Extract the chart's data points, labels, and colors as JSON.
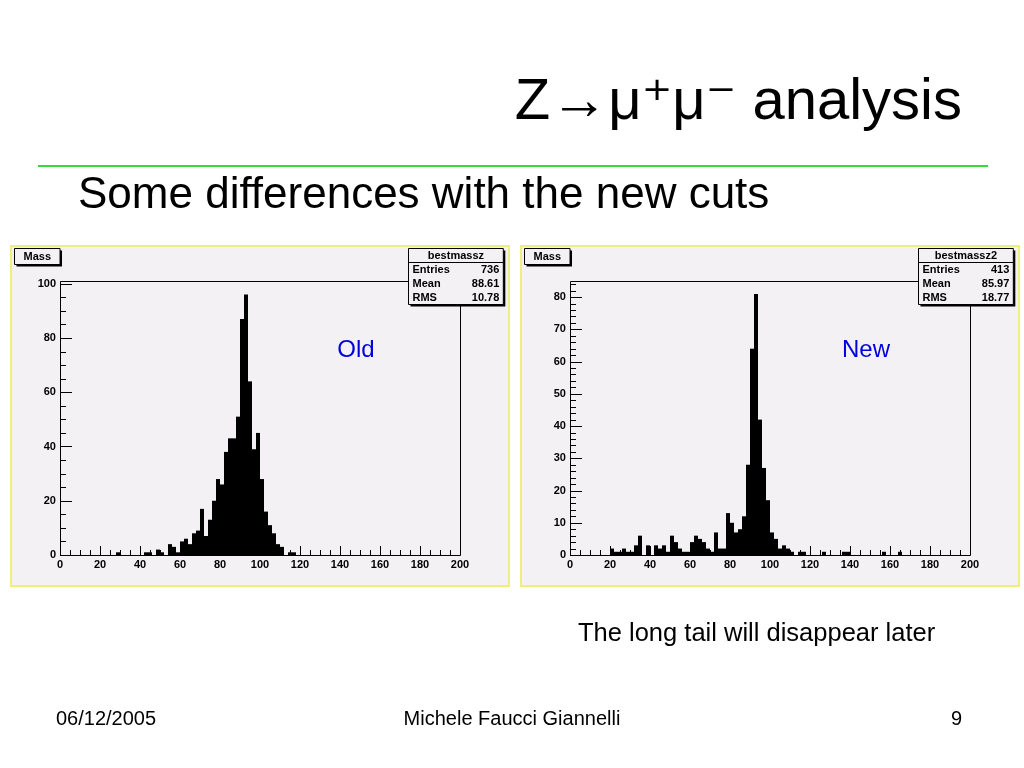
{
  "chart_data": [
    {
      "type": "other",
      "title": "Z→μ⁺μ⁻ analysis",
      "subtitle": "Some differences with the new cuts"
    },
    {
      "type": "histogram",
      "title": "Mass",
      "color": "#000000",
      "bins": [
        0,
        2,
        4,
        6,
        8,
        10,
        12,
        14,
        16,
        18,
        20,
        22,
        24,
        26,
        28,
        30,
        32,
        34,
        36,
        38,
        40,
        42,
        44,
        46,
        48,
        50,
        52,
        54,
        56,
        58,
        60,
        62,
        64,
        66,
        68,
        70,
        72,
        74,
        76,
        78,
        80,
        82,
        84,
        86,
        88,
        90,
        92,
        94,
        96,
        98,
        100,
        102,
        104,
        106,
        108,
        110,
        112,
        114,
        116,
        118,
        120,
        122,
        124,
        126,
        128,
        130,
        132,
        134,
        136,
        138,
        140,
        142,
        144,
        146,
        148,
        150,
        152,
        154,
        156,
        158,
        160,
        162,
        164,
        166,
        168,
        170,
        172,
        174,
        176,
        178,
        180,
        182,
        184,
        186,
        188,
        190,
        192,
        194,
        196,
        198,
        200
      ],
      "values": [
        0,
        0,
        0,
        0,
        0,
        0,
        0,
        0,
        0,
        0,
        0,
        0,
        0,
        0,
        1,
        0,
        0,
        0,
        0,
        0,
        0,
        1,
        1,
        0,
        2,
        1,
        0,
        4,
        3,
        1,
        5,
        6,
        4,
        8,
        9,
        17,
        7,
        13,
        20,
        28,
        26,
        38,
        43,
        43,
        51,
        87,
        96,
        64,
        39,
        45,
        28,
        16,
        11,
        8,
        4,
        3,
        0,
        1,
        1,
        0,
        0,
        0,
        0,
        0,
        0,
        0,
        0,
        0,
        0,
        0,
        0,
        0,
        0,
        0,
        0,
        0,
        0,
        0,
        0,
        0,
        0,
        0,
        0,
        0,
        0,
        0,
        0,
        0,
        0,
        0,
        0,
        0,
        0,
        0,
        0,
        0,
        0,
        0,
        0,
        0
      ],
      "xlim": [
        0,
        200
      ],
      "xticks": [
        0,
        {
          "value": 5,
          "label": null
        },
        {
          "value": 10,
          "label": null
        },
        {
          "value": 15,
          "label": null
        },
        20,
        {
          "value": 25,
          "label": null
        },
        {
          "value": 30,
          "label": null
        },
        {
          "value": 35,
          "label": null
        },
        40,
        {
          "value": 45,
          "label": null
        },
        {
          "value": 50,
          "label": null
        },
        {
          "value": 55,
          "label": null
        },
        60,
        {
          "value": 65,
          "label": null
        },
        {
          "value": 70,
          "label": null
        },
        {
          "value": 75,
          "label": null
        },
        80,
        {
          "value": 85,
          "label": null
        },
        {
          "value": 90,
          "label": null
        },
        {
          "value": 95,
          "label": null
        },
        100,
        {
          "value": 105,
          "label": null
        },
        {
          "value": 110,
          "label": null
        },
        {
          "value": 115,
          "label": null
        },
        120,
        {
          "value": 125,
          "label": null
        },
        {
          "value": 130,
          "label": null
        },
        {
          "value": 135,
          "label": null
        },
        140,
        {
          "value": 145,
          "label": null
        },
        {
          "value": 150,
          "label": null
        },
        {
          "value": 155,
          "label": null
        },
        160,
        {
          "value": 165,
          "label": null
        },
        {
          "value": 170,
          "label": null
        },
        {
          "value": 175,
          "label": null
        },
        180,
        {
          "value": 185,
          "label": null
        },
        {
          "value": 190,
          "label": null
        },
        {
          "value": 195,
          "label": null
        },
        200
      ],
      "ylim": [
        0,
        101
      ],
      "yticks": [
        0,
        {
          "value": 5,
          "label": null
        },
        {
          "value": 10,
          "label": null
        },
        {
          "value": 15,
          "label": null
        },
        20,
        {
          "value": 25,
          "label": null
        },
        {
          "value": 30,
          "label": null
        },
        {
          "value": 35,
          "label": null
        },
        40,
        {
          "value": 45,
          "label": null
        },
        {
          "value": 50,
          "label": null
        },
        {
          "value": 55,
          "label": null
        },
        60,
        {
          "value": 65,
          "label": null
        },
        {
          "value": 70,
          "label": null
        },
        {
          "value": 75,
          "label": null
        },
        80,
        {
          "value": 85,
          "label": null
        },
        {
          "value": 90,
          "label": null
        },
        {
          "value": 95,
          "label": null
        },
        100
      ],
      "annotations": [
        "bestmassz",
        "Entries",
        "736",
        "Mean",
        "88.61",
        "RMS",
        "10.78",
        "Old"
      ]
    },
    {
      "type": "histogram",
      "title": "Mass",
      "color": "#000000",
      "bins": [
        0,
        2,
        4,
        6,
        8,
        10,
        12,
        14,
        16,
        18,
        20,
        22,
        24,
        26,
        28,
        30,
        32,
        34,
        36,
        38,
        40,
        42,
        44,
        46,
        48,
        50,
        52,
        54,
        56,
        58,
        60,
        62,
        64,
        66,
        68,
        70,
        72,
        74,
        76,
        78,
        80,
        82,
        84,
        86,
        88,
        90,
        92,
        94,
        96,
        98,
        100,
        102,
        104,
        106,
        108,
        110,
        112,
        114,
        116,
        118,
        120,
        122,
        124,
        126,
        128,
        130,
        132,
        134,
        136,
        138,
        140,
        142,
        144,
        146,
        148,
        150,
        152,
        154,
        156,
        158,
        160,
        162,
        164,
        166,
        168,
        170,
        172,
        174,
        176,
        178,
        180,
        182,
        184,
        186,
        188,
        190,
        192,
        194,
        196,
        198,
        200
      ],
      "values": [
        0,
        0,
        0,
        0,
        0,
        0,
        0,
        0,
        0,
        0,
        2,
        1,
        1,
        2,
        1,
        1,
        3,
        6,
        0,
        3,
        0,
        3,
        2,
        3,
        1,
        6,
        4,
        2,
        1,
        1,
        4,
        6,
        5,
        4,
        2,
        1,
        7,
        2,
        2,
        13,
        10,
        7,
        8,
        12,
        28,
        64,
        81,
        42,
        27,
        17,
        7,
        5,
        2,
        3,
        2,
        1,
        0,
        1,
        1,
        0,
        0,
        0,
        0,
        1,
        0,
        0,
        0,
        0,
        1,
        1,
        0,
        0,
        0,
        0,
        0,
        0,
        0,
        0,
        1,
        0,
        0,
        0,
        1,
        0,
        0,
        0,
        0,
        0,
        0,
        0,
        0,
        0,
        0,
        0,
        0,
        0,
        0,
        0,
        0,
        0
      ],
      "xlim": [
        0,
        200
      ],
      "xticks": [
        0,
        {
          "value": 5,
          "label": null
        },
        {
          "value": 10,
          "label": null
        },
        {
          "value": 15,
          "label": null
        },
        20,
        {
          "value": 25,
          "label": null
        },
        {
          "value": 30,
          "label": null
        },
        {
          "value": 35,
          "label": null
        },
        40,
        {
          "value": 45,
          "label": null
        },
        {
          "value": 50,
          "label": null
        },
        {
          "value": 55,
          "label": null
        },
        60,
        {
          "value": 65,
          "label": null
        },
        {
          "value": 70,
          "label": null
        },
        {
          "value": 75,
          "label": null
        },
        80,
        {
          "value": 85,
          "label": null
        },
        {
          "value": 90,
          "label": null
        },
        {
          "value": 95,
          "label": null
        },
        100,
        {
          "value": 105,
          "label": null
        },
        {
          "value": 110,
          "label": null
        },
        {
          "value": 115,
          "label": null
        },
        120,
        {
          "value": 125,
          "label": null
        },
        {
          "value": 130,
          "label": null
        },
        {
          "value": 135,
          "label": null
        },
        140,
        {
          "value": 145,
          "label": null
        },
        {
          "value": 150,
          "label": null
        },
        {
          "value": 155,
          "label": null
        },
        160,
        {
          "value": 165,
          "label": null
        },
        {
          "value": 170,
          "label": null
        },
        {
          "value": 175,
          "label": null
        },
        180,
        {
          "value": 185,
          "label": null
        },
        {
          "value": 190,
          "label": null
        },
        {
          "value": 195,
          "label": null
        },
        200
      ],
      "ylim": [
        0,
        85
      ],
      "yticks": [
        0,
        {
          "value": 2,
          "label": null
        },
        {
          "value": 4,
          "label": null
        },
        {
          "value": 6,
          "label": null
        },
        {
          "value": 8,
          "label": null
        },
        10,
        {
          "value": 12,
          "label": null
        },
        {
          "value": 14,
          "label": null
        },
        {
          "value": 16,
          "label": null
        },
        {
          "value": 18,
          "label": null
        },
        20,
        {
          "value": 22,
          "label": null
        },
        {
          "value": 24,
          "label": null
        },
        {
          "value": 26,
          "label": null
        },
        {
          "value": 28,
          "label": null
        },
        30,
        {
          "value": 32,
          "label": null
        },
        {
          "value": 34,
          "label": null
        },
        {
          "value": 36,
          "label": null
        },
        {
          "value": 38,
          "label": null
        },
        40,
        {
          "value": 42,
          "label": null
        },
        {
          "value": 44,
          "label": null
        },
        {
          "value": 46,
          "label": null
        },
        {
          "value": 48,
          "label": null
        },
        50,
        {
          "value": 52,
          "label": null
        },
        {
          "value": 54,
          "label": null
        },
        {
          "value": 56,
          "label": null
        },
        {
          "value": 58,
          "label": null
        },
        60,
        {
          "value": 62,
          "label": null
        },
        {
          "value": 64,
          "label": null
        },
        {
          "value": 66,
          "label": null
        },
        {
          "value": 68,
          "label": null
        },
        70,
        {
          "value": 72,
          "label": null
        },
        {
          "value": 74,
          "label": null
        },
        {
          "value": 76,
          "label": null
        },
        {
          "value": 78,
          "label": null
        },
        80,
        {
          "value": 82,
          "label": null
        },
        {
          "value": 84,
          "label": null
        }
      ],
      "annotations": [
        "bestmassz2",
        "Entries",
        "413",
        "Mean",
        "85.97",
        "RMS",
        "18.77",
        "New"
      ]
    },
    {
      "type": "other",
      "annotations": [
        "The long tail will disappear later",
        "06/12/2005",
        "Michele Faucci Giannelli",
        "9"
      ]
    }
  ]
}
